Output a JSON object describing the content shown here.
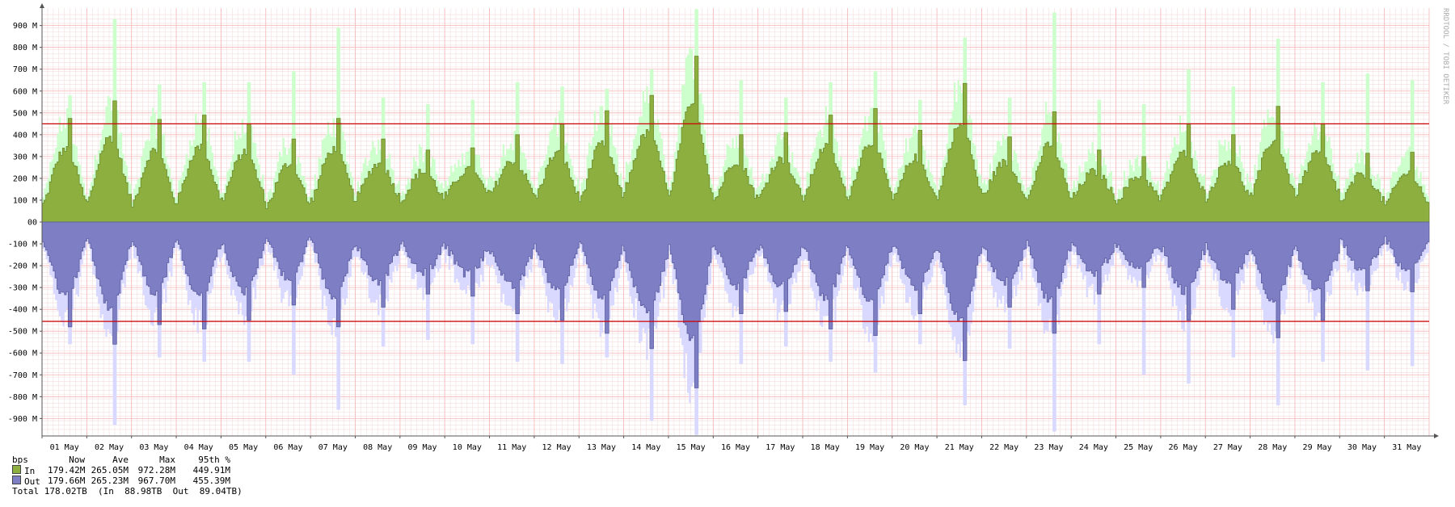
{
  "chart_data": {
    "type": "area",
    "unit_label": "bps",
    "ylim": [
      -980000000,
      980000000
    ],
    "y_ticks": [
      {
        "value": 900000000,
        "label": "900 M"
      },
      {
        "value": 800000000,
        "label": "800 M"
      },
      {
        "value": 700000000,
        "label": "700 M"
      },
      {
        "value": 600000000,
        "label": "600 M"
      },
      {
        "value": 500000000,
        "label": "500 M"
      },
      {
        "value": 400000000,
        "label": "400 M"
      },
      {
        "value": 300000000,
        "label": "300 M"
      },
      {
        "value": 200000000,
        "label": "200 M"
      },
      {
        "value": 100000000,
        "label": "100 M"
      },
      {
        "value": 0,
        "label": "00"
      },
      {
        "value": -100000000,
        "label": "-100 M"
      },
      {
        "value": -200000000,
        "label": "-200 M"
      },
      {
        "value": -300000000,
        "label": "-300 M"
      },
      {
        "value": -400000000,
        "label": "-400 M"
      },
      {
        "value": -500000000,
        "label": "-500 M"
      },
      {
        "value": -600000000,
        "label": "-600 M"
      },
      {
        "value": -700000000,
        "label": "-700 M"
      },
      {
        "value": -800000000,
        "label": "-800 M"
      },
      {
        "value": -900000000,
        "label": "-900 M"
      }
    ],
    "x_labels": [
      "01 May",
      "02 May",
      "03 May",
      "04 May",
      "05 May",
      "06 May",
      "07 May",
      "08 May",
      "09 May",
      "10 May",
      "11 May",
      "12 May",
      "13 May",
      "14 May",
      "15 May",
      "16 May",
      "17 May",
      "18 May",
      "19 May",
      "20 May",
      "21 May",
      "22 May",
      "23 May",
      "24 May",
      "25 May",
      "26 May",
      "27 May",
      "28 May",
      "29 May",
      "30 May",
      "31 May"
    ],
    "grid": true,
    "percentile_95_in": 449910000,
    "percentile_95_out": 455390000,
    "series": [
      {
        "name": "In",
        "color_avg": "#8daf3f",
        "color_max": "#ccffcc",
        "daily_peak_avg_mbps": [
          475,
          555,
          470,
          490,
          450,
          380,
          475,
          380,
          330,
          340,
          400,
          450,
          510,
          580,
          760,
          400,
          410,
          490,
          520,
          420,
          635,
          390,
          505,
          330,
          300,
          450,
          400,
          530,
          450,
          315,
          320
        ],
        "daily_peak_max_mbps": [
          580,
          930,
          630,
          640,
          640,
          690,
          890,
          570,
          540,
          560,
          640,
          620,
          610,
          700,
          975,
          650,
          570,
          640,
          690,
          560,
          845,
          570,
          960,
          560,
          540,
          700,
          620,
          840,
          640,
          680,
          650
        ],
        "daily_trough_avg_mbps": [
          80,
          90,
          80,
          100,
          100,
          70,
          100,
          110,
          100,
          120,
          130,
          110,
          100,
          150,
          110,
          100,
          110,
          110,
          120,
          100,
          120,
          120,
          100,
          110,
          100,
          120,
          110,
          120,
          130,
          90,
          80
        ]
      },
      {
        "name": "Out",
        "color_avg": "#7e7ec4",
        "color_max": "#d9d9ff",
        "daily_peak_avg_mbps": [
          480,
          560,
          470,
          490,
          450,
          380,
          480,
          390,
          330,
          340,
          420,
          450,
          510,
          580,
          760,
          420,
          410,
          490,
          520,
          420,
          635,
          390,
          510,
          330,
          300,
          450,
          400,
          530,
          450,
          315,
          320
        ],
        "daily_peak_max_mbps": [
          560,
          930,
          620,
          640,
          640,
          700,
          860,
          570,
          540,
          560,
          640,
          650,
          620,
          910,
          975,
          650,
          570,
          640,
          690,
          560,
          840,
          580,
          960,
          560,
          700,
          740,
          620,
          840,
          640,
          680,
          660
        ],
        "daily_trough_avg_mbps": [
          80,
          90,
          80,
          100,
          100,
          70,
          100,
          110,
          100,
          120,
          130,
          110,
          100,
          150,
          110,
          100,
          110,
          110,
          120,
          100,
          120,
          120,
          100,
          110,
          100,
          120,
          110,
          120,
          130,
          90,
          80
        ]
      }
    ]
  },
  "watermark": "RRDTOOL / TOBI OETIKER",
  "legend": {
    "header": {
      "unit": "bps",
      "now": "Now",
      "ave": "Ave",
      "max": "Max",
      "p95": "95th %"
    },
    "in": {
      "label": "In",
      "now": "179.42M",
      "ave": "265.05M",
      "max": "972.28M",
      "p95": "449.91M",
      "color": "#8daf3f"
    },
    "out": {
      "label": "Out",
      "now": "179.66M",
      "ave": "265.23M",
      "max": "967.70M",
      "p95": "455.39M",
      "color": "#7e7ec4"
    },
    "total_line": "Total 178.02TB  (In  88.98TB  Out  89.04TB)"
  }
}
